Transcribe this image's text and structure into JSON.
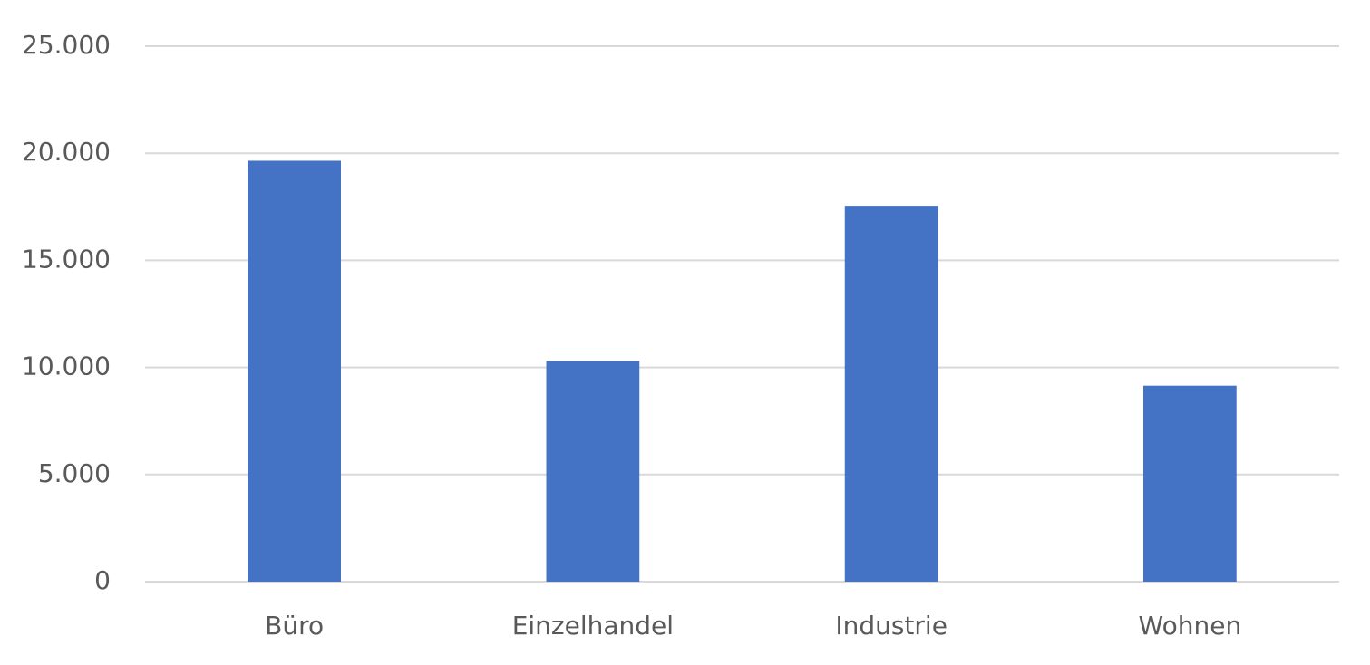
{
  "chart_data": {
    "type": "bar",
    "categories": [
      "Büro",
      "Einzelhandel",
      "Industrie",
      "Wohnen"
    ],
    "values": [
      19650,
      10300,
      17550,
      9150
    ],
    "color": "#4472c4",
    "ylim": [
      0,
      25000
    ],
    "yticks": [
      0,
      {
        "value": 5000,
        "label": "5.000"
      },
      {
        "value": 10000,
        "label": "10.000"
      },
      {
        "value": 15000,
        "label": "15.000"
      },
      {
        "value": 20000,
        "label": "20.000"
      },
      {
        "value": 25000,
        "label": "25.000"
      }
    ],
    "grid": true
  }
}
